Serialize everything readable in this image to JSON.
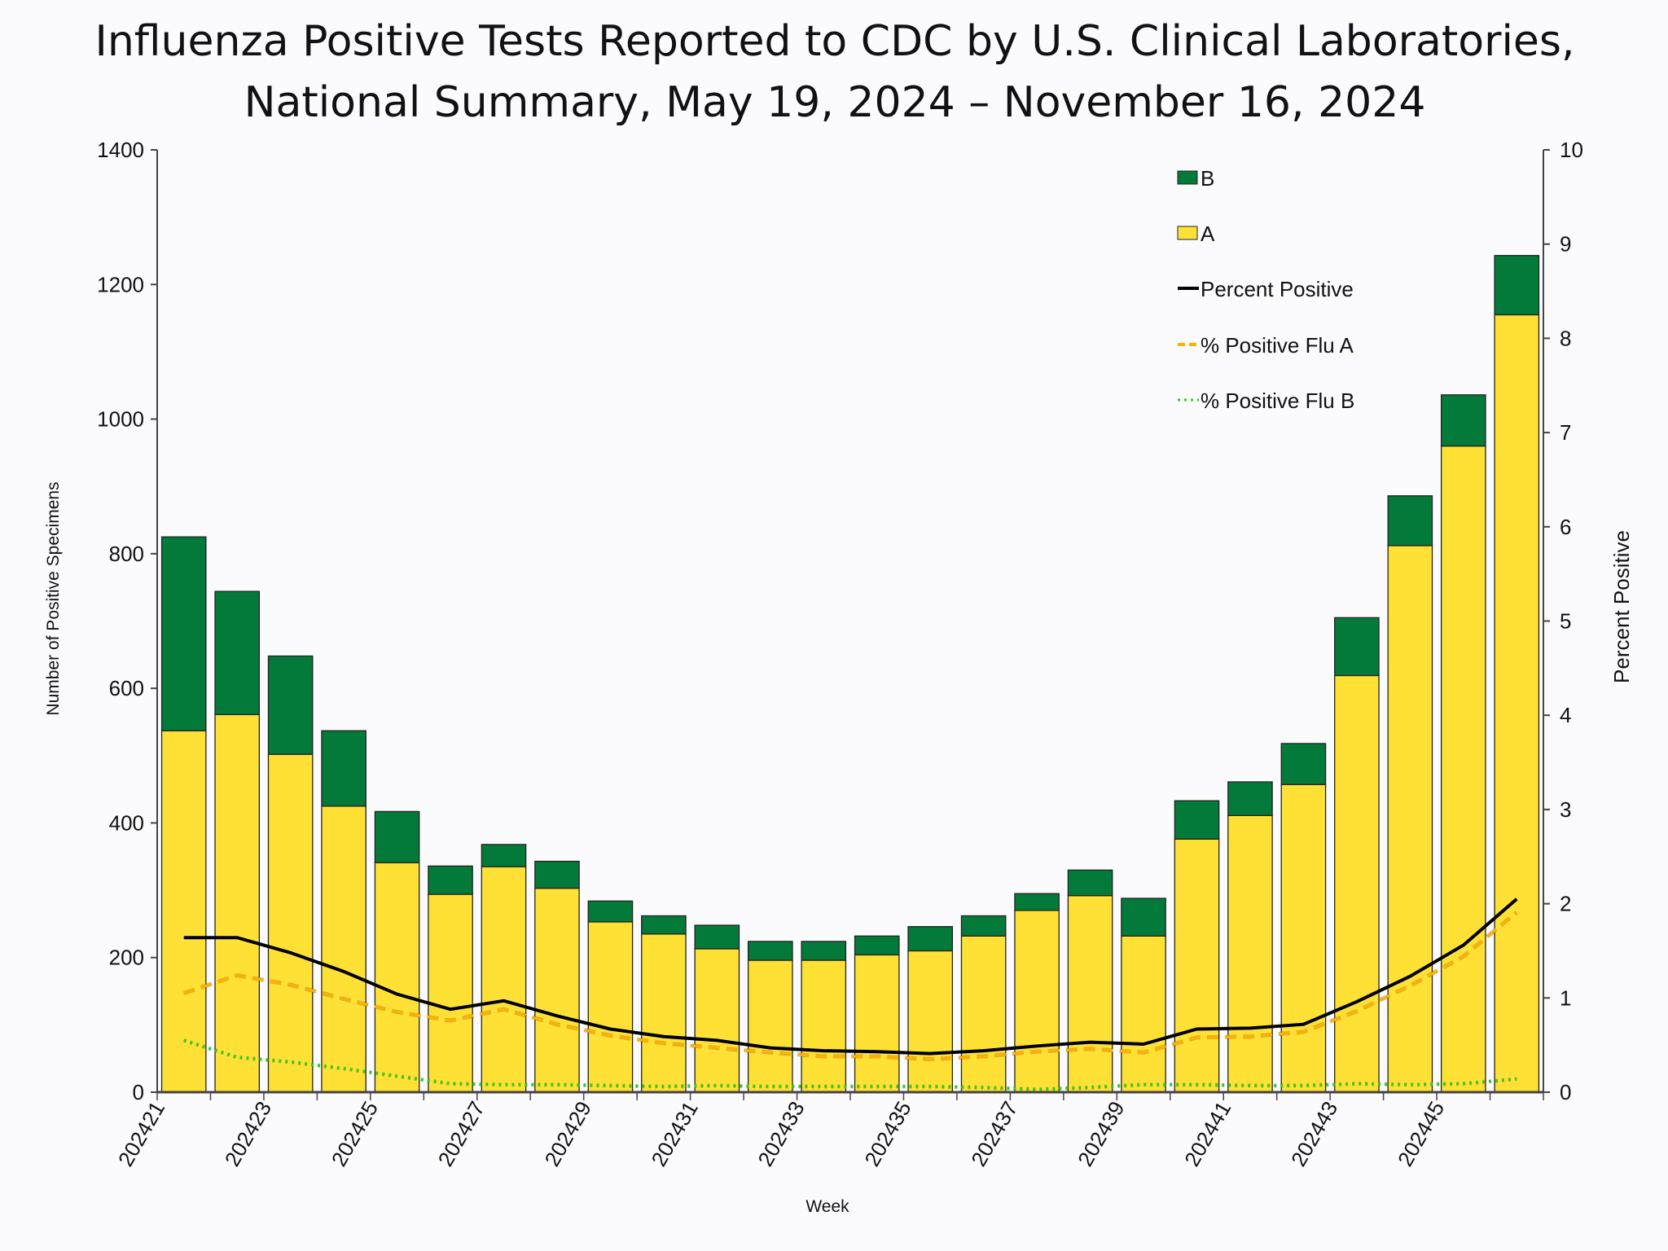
{
  "chart_data": {
    "type": "bar+line",
    "title": [
      "Influenza Positive Tests Reported to CDC by U.S. Clinical Laboratories,",
      "National Summary, May 19, 2024 – November 16, 2024"
    ],
    "xlabel": "Week",
    "ylabel": "Number of Positive Specimens",
    "y2label": "Percent Positive",
    "ylim": [
      0,
      1400
    ],
    "y2lim": [
      0,
      10
    ],
    "yticks": [
      0,
      200,
      400,
      600,
      800,
      1000,
      1200,
      1400
    ],
    "y2ticks": [
      0,
      1,
      2,
      3,
      4,
      5,
      6,
      7,
      8,
      9,
      10
    ],
    "categories": [
      "202421",
      "202422",
      "202423",
      "202424",
      "202425",
      "202426",
      "202427",
      "202428",
      "202429",
      "202430",
      "202431",
      "202432",
      "202433",
      "202434",
      "202435",
      "202436",
      "202437",
      "202438",
      "202439",
      "202440",
      "202441",
      "202442",
      "202443",
      "202444",
      "202445",
      "202446"
    ],
    "xtick_labels": [
      "202421",
      "202423",
      "202425",
      "202427",
      "202429",
      "202431",
      "202433",
      "202435",
      "202437",
      "202439",
      "202441",
      "202443",
      "202445"
    ],
    "bars": [
      {
        "name": "A",
        "color": "#ffe135",
        "values": [
          537,
          561,
          502,
          425,
          341,
          294,
          335,
          303,
          253,
          235,
          213,
          196,
          196,
          204,
          210,
          232,
          270,
          292,
          232,
          376,
          411,
          457,
          619,
          812,
          960,
          1155
        ]
      },
      {
        "name": "B",
        "color": "#037a3a",
        "values": [
          288,
          183,
          146,
          112,
          76,
          42,
          33,
          40,
          31,
          27,
          35,
          28,
          28,
          28,
          36,
          30,
          25,
          38,
          56,
          57,
          50,
          61,
          86,
          74,
          76,
          88
        ]
      }
    ],
    "lines": [
      {
        "name": "Percent Positive",
        "color": "#000000",
        "style": "solid",
        "axis": "right",
        "values": [
          1.64,
          1.64,
          1.48,
          1.28,
          1.04,
          0.88,
          0.97,
          0.81,
          0.67,
          0.59,
          0.55,
          0.47,
          0.44,
          0.43,
          0.41,
          0.44,
          0.49,
          0.53,
          0.51,
          0.67,
          0.68,
          0.72,
          0.96,
          1.23,
          1.56,
          2.05
        ]
      },
      {
        "name": "% Positive Flu A",
        "color": "#ffb000",
        "style": "dashed",
        "axis": "right",
        "values": [
          1.05,
          1.24,
          1.14,
          0.99,
          0.85,
          0.76,
          0.88,
          0.72,
          0.6,
          0.52,
          0.47,
          0.42,
          0.38,
          0.38,
          0.35,
          0.38,
          0.43,
          0.46,
          0.42,
          0.58,
          0.59,
          0.64,
          0.86,
          1.13,
          1.44,
          1.91
        ]
      },
      {
        "name": "% Positive Flu B",
        "color": "#33cc11",
        "style": "dotted",
        "axis": "right",
        "values": [
          0.55,
          0.37,
          0.32,
          0.25,
          0.17,
          0.09,
          0.08,
          0.08,
          0.07,
          0.06,
          0.07,
          0.06,
          0.06,
          0.06,
          0.06,
          0.05,
          0.03,
          0.05,
          0.08,
          0.08,
          0.07,
          0.07,
          0.09,
          0.08,
          0.09,
          0.14
        ]
      }
    ],
    "legend": {
      "placement": "top-right",
      "entries": [
        "B",
        "A",
        "Percent Positive",
        "% Positive Flu A",
        "% Positive Flu B"
      ]
    },
    "grid": false
  }
}
